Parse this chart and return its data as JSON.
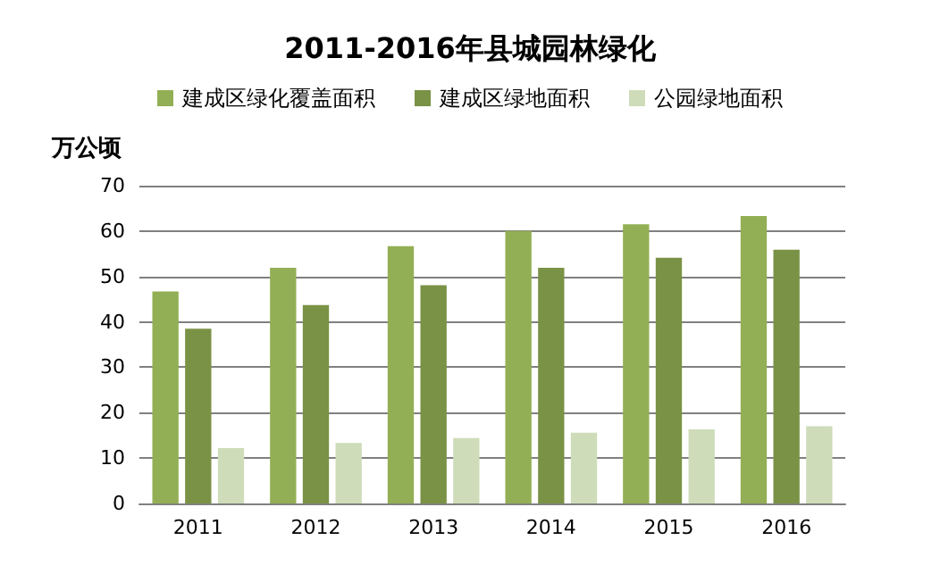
{
  "chart_data": {
    "type": "bar",
    "title": "2011-2016年县城园林绿化",
    "ylabel": "万公顷",
    "categories": [
      "2011",
      "2012",
      "2013",
      "2014",
      "2015",
      "2016"
    ],
    "series": [
      {
        "name": "建成区绿化覆盖面积",
        "color": "#93af55",
        "values": [
          46.7,
          51.9,
          56.7,
          60.0,
          61.5,
          63.3
        ]
      },
      {
        "name": "建成区绿地面积",
        "color": "#7a9245",
        "values": [
          38.5,
          43.7,
          48.1,
          51.9,
          54.1,
          55.9
        ]
      },
      {
        "name": "公园绿地面积",
        "color": "#cedcb9",
        "values": [
          12.2,
          13.3,
          14.4,
          15.6,
          16.3,
          17.0
        ]
      }
    ],
    "ylim": [
      0,
      70
    ],
    "yticks": [
      0,
      10,
      20,
      30,
      40,
      50,
      60,
      70
    ],
    "grid": "y",
    "legend": "top"
  }
}
